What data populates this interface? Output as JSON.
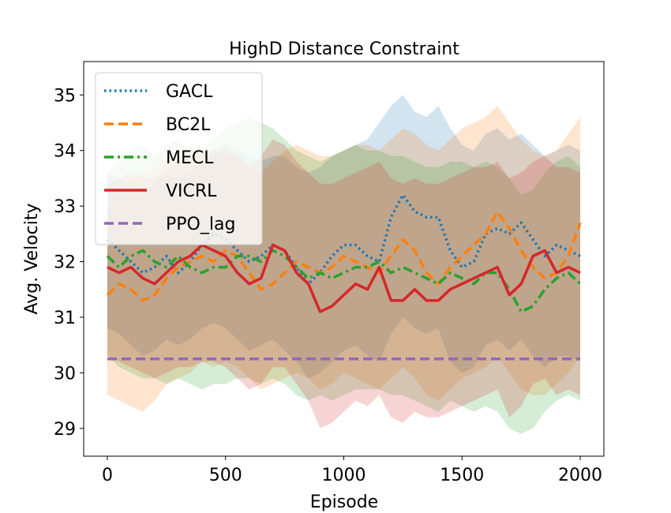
{
  "chart_data": {
    "type": "line",
    "title": "HighD Distance Constraint",
    "xlabel": "Episode",
    "ylabel": "Avg. Velocity",
    "xlim": [
      -100,
      2100
    ],
    "ylim": [
      28.5,
      35.6
    ],
    "xticks": [
      0,
      500,
      1000,
      1500,
      2000
    ],
    "yticks": [
      29,
      30,
      31,
      32,
      33,
      34,
      35
    ],
    "legend_position": "upper-left",
    "x": [
      0,
      50,
      100,
      150,
      200,
      250,
      300,
      350,
      400,
      450,
      500,
      550,
      600,
      650,
      700,
      750,
      800,
      850,
      900,
      950,
      1000,
      1050,
      1100,
      1150,
      1200,
      1250,
      1300,
      1350,
      1400,
      1450,
      1500,
      1550,
      1600,
      1650,
      1700,
      1750,
      1800,
      1850,
      1900,
      1950,
      2000
    ],
    "series": [
      {
        "name": "GACL",
        "color": "#1f77b4",
        "style": "dotted",
        "values": [
          32.4,
          32.2,
          32.0,
          31.8,
          31.9,
          32.1,
          31.8,
          32.0,
          32.3,
          32.5,
          32.4,
          32.2,
          32.0,
          32.1,
          32.3,
          32.2,
          31.9,
          31.6,
          31.8,
          32.1,
          32.3,
          32.3,
          32.1,
          32.0,
          32.8,
          33.2,
          32.9,
          32.8,
          32.8,
          32.2,
          31.9,
          32.0,
          32.5,
          32.6,
          32.5,
          32.7,
          32.4,
          32.1,
          32.3,
          32.2,
          32.1
        ],
        "upper": [
          33.6,
          33.5,
          33.4,
          33.3,
          33.4,
          33.6,
          33.5,
          33.6,
          33.8,
          34.0,
          34.1,
          34.0,
          33.9,
          33.8,
          33.9,
          33.9,
          33.7,
          33.6,
          33.7,
          33.9,
          34.0,
          34.1,
          34.2,
          34.5,
          34.8,
          35.0,
          34.7,
          34.6,
          34.8,
          34.4,
          34.1,
          34.0,
          34.3,
          34.4,
          34.2,
          34.3,
          34.1,
          33.9,
          34.0,
          34.1,
          34.0
        ],
        "lower": [
          30.8,
          30.7,
          30.5,
          30.3,
          30.4,
          30.6,
          30.5,
          30.6,
          30.8,
          30.9,
          30.8,
          30.6,
          30.4,
          30.5,
          30.6,
          30.4,
          30.2,
          29.9,
          30.0,
          30.2,
          30.4,
          30.5,
          30.3,
          30.2,
          30.7,
          31.0,
          30.8,
          30.7,
          30.8,
          30.2,
          30.0,
          30.1,
          30.5,
          30.6,
          30.4,
          30.6,
          30.3,
          30.1,
          30.3,
          30.3,
          30.2
        ]
      },
      {
        "name": "BC2L",
        "color": "#ff7f0e",
        "style": "dashed",
        "values": [
          31.4,
          31.6,
          31.5,
          31.3,
          31.4,
          31.7,
          31.9,
          32.0,
          32.1,
          32.0,
          32.2,
          32.1,
          31.8,
          31.5,
          31.6,
          31.8,
          32.0,
          31.9,
          31.8,
          31.9,
          32.1,
          32.0,
          31.9,
          31.8,
          32.1,
          32.4,
          32.2,
          31.8,
          31.6,
          31.9,
          32.1,
          32.3,
          32.5,
          32.9,
          32.6,
          32.2,
          31.9,
          31.7,
          31.8,
          32.1,
          32.7
        ],
        "upper": [
          33.0,
          33.3,
          33.5,
          33.6,
          33.7,
          33.9,
          34.0,
          34.1,
          34.0,
          33.9,
          34.0,
          33.9,
          33.7,
          33.6,
          33.8,
          34.0,
          34.1,
          34.0,
          33.9,
          33.9,
          34.0,
          34.1,
          34.1,
          34.0,
          34.2,
          34.4,
          34.3,
          34.1,
          34.0,
          34.2,
          34.4,
          34.5,
          34.6,
          34.8,
          34.5,
          34.2,
          34.0,
          33.9,
          34.0,
          34.3,
          34.6
        ],
        "lower": [
          29.6,
          29.5,
          29.4,
          29.3,
          29.5,
          29.8,
          29.9,
          30.0,
          30.2,
          30.1,
          30.2,
          30.1,
          29.9,
          29.7,
          29.8,
          29.9,
          30.0,
          29.9,
          29.7,
          29.8,
          30.0,
          29.9,
          29.8,
          29.7,
          29.9,
          30.1,
          29.9,
          29.6,
          29.5,
          29.7,
          29.9,
          30.0,
          30.1,
          30.3,
          30.0,
          29.7,
          29.6,
          29.6,
          29.8,
          30.0,
          30.3
        ]
      },
      {
        "name": "MECL",
        "color": "#2ca02c",
        "style": "dashdot",
        "values": [
          32.1,
          31.9,
          32.1,
          32.2,
          32.0,
          31.9,
          32.1,
          31.9,
          31.8,
          31.9,
          31.9,
          32.1,
          32.1,
          32.0,
          32.2,
          32.1,
          31.9,
          31.7,
          31.8,
          31.7,
          31.8,
          31.9,
          31.9,
          32.0,
          31.8,
          31.9,
          31.8,
          31.7,
          31.6,
          31.8,
          31.7,
          31.6,
          31.8,
          31.8,
          31.5,
          31.1,
          31.2,
          31.5,
          31.7,
          31.8,
          31.6
        ],
        "upper": [
          33.6,
          33.8,
          34.0,
          34.1,
          33.9,
          34.1,
          34.2,
          34.0,
          34.0,
          34.2,
          34.4,
          34.5,
          34.6,
          34.5,
          34.4,
          34.2,
          34.0,
          33.9,
          33.8,
          33.9,
          34.0,
          34.1,
          34.0,
          34.0,
          33.9,
          33.9,
          33.8,
          33.7,
          33.7,
          33.8,
          33.8,
          33.7,
          33.8,
          33.7,
          33.5,
          33.2,
          33.3,
          33.6,
          33.8,
          33.9,
          33.7
        ],
        "lower": [
          30.3,
          30.1,
          30.0,
          29.9,
          29.9,
          29.8,
          29.9,
          29.8,
          29.7,
          29.8,
          29.8,
          29.9,
          29.9,
          29.8,
          29.9,
          29.8,
          29.6,
          29.5,
          29.6,
          29.5,
          29.6,
          29.7,
          29.7,
          29.7,
          29.6,
          29.6,
          29.5,
          29.4,
          29.3,
          29.5,
          29.4,
          29.3,
          29.4,
          29.3,
          29.0,
          28.9,
          29.0,
          29.3,
          29.5,
          29.6,
          29.5
        ]
      },
      {
        "name": "VICRL",
        "color": "#d62728",
        "style": "solid",
        "values": [
          31.9,
          31.8,
          31.9,
          31.7,
          31.6,
          31.8,
          32.0,
          32.1,
          32.3,
          32.2,
          32.1,
          31.8,
          31.6,
          31.7,
          32.3,
          32.2,
          31.8,
          31.6,
          31.1,
          31.2,
          31.4,
          31.6,
          31.5,
          31.9,
          31.3,
          31.3,
          31.5,
          31.3,
          31.3,
          31.5,
          31.6,
          31.7,
          31.8,
          31.9,
          31.4,
          31.6,
          32.1,
          32.2,
          31.8,
          31.9,
          31.8
        ],
        "upper": [
          33.4,
          33.5,
          33.6,
          33.5,
          33.5,
          33.7,
          33.8,
          33.9,
          34.0,
          34.0,
          34.0,
          33.9,
          33.7,
          33.9,
          34.2,
          34.1,
          33.8,
          33.6,
          33.4,
          33.4,
          33.5,
          33.6,
          33.7,
          33.8,
          33.5,
          33.4,
          33.5,
          33.4,
          33.4,
          33.5,
          33.6,
          33.7,
          33.7,
          33.8,
          33.5,
          33.6,
          33.8,
          33.9,
          33.7,
          33.7,
          33.6
        ],
        "lower": [
          30.3,
          30.2,
          30.1,
          30.0,
          29.9,
          30.0,
          30.1,
          30.1,
          30.2,
          30.2,
          30.1,
          29.9,
          29.7,
          29.8,
          30.1,
          30.1,
          29.8,
          29.5,
          29.0,
          29.1,
          29.3,
          29.5,
          29.4,
          29.6,
          29.2,
          29.1,
          29.3,
          29.2,
          29.2,
          29.3,
          29.4,
          29.5,
          29.6,
          29.7,
          29.2,
          29.4,
          29.8,
          29.9,
          29.6,
          29.7,
          29.6
        ]
      },
      {
        "name": "PPO_lag",
        "color": "#9467bd",
        "style": "dashed",
        "values": [
          30.25,
          30.25,
          30.25,
          30.25,
          30.25,
          30.25,
          30.25,
          30.25,
          30.25,
          30.25,
          30.25,
          30.25,
          30.25,
          30.25,
          30.25,
          30.25,
          30.25,
          30.25,
          30.25,
          30.25,
          30.25,
          30.25,
          30.25,
          30.25,
          30.25,
          30.25,
          30.25,
          30.25,
          30.25,
          30.25,
          30.25,
          30.25,
          30.25,
          30.25,
          30.25,
          30.25,
          30.25,
          30.25,
          30.25,
          30.25,
          30.25
        ]
      }
    ]
  }
}
